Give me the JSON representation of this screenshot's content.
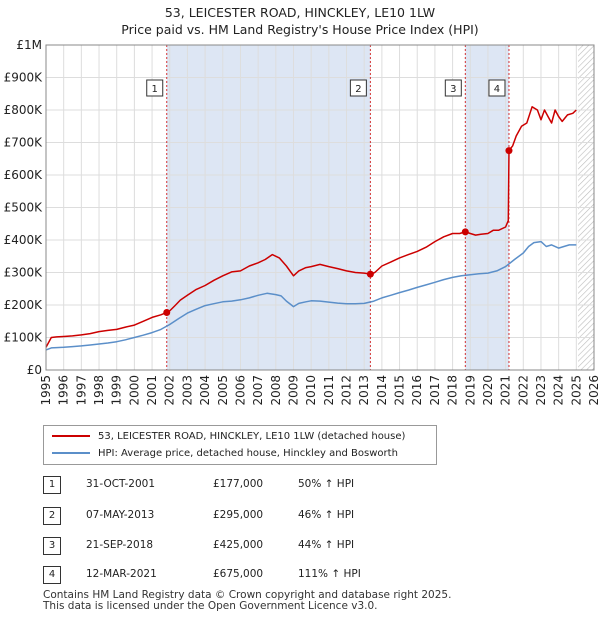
{
  "title": {
    "line1": "53, LEICESTER ROAD, HINCKLEY, LE10 1LW",
    "line2": "Price paid vs. HM Land Registry's House Price Index (HPI)"
  },
  "colors": {
    "property": "#cc0000",
    "hpi": "#5b8fc9",
    "shade": "#dde6f4",
    "grid": "#dddddd"
  },
  "legend": {
    "property": "53, LEICESTER ROAD, HINCKLEY, LE10 1LW (detached house)",
    "hpi": "HPI: Average price, detached house, Hinckley and Bosworth"
  },
  "sales": [
    {
      "num": "1",
      "date": "31-OCT-2001",
      "price": "£177,000",
      "hpi": "50% ↑ HPI"
    },
    {
      "num": "2",
      "date": "07-MAY-2013",
      "price": "£295,000",
      "hpi": "46% ↑ HPI"
    },
    {
      "num": "3",
      "date": "21-SEP-2018",
      "price": "£425,000",
      "hpi": "44% ↑ HPI"
    },
    {
      "num": "4",
      "date": "12-MAR-2021",
      "price": "£675,000",
      "hpi": "111% ↑ HPI"
    }
  ],
  "footer": {
    "line1": "Contains HM Land Registry data © Crown copyright and database right 2025.",
    "line2": "This data is licensed under the Open Government Licence v3.0."
  },
  "chart_data": {
    "type": "line",
    "title": "53, LEICESTER ROAD, HINCKLEY, LE10 1LW — Price paid vs. HM Land Registry's House Price Index (HPI)",
    "xlim": [
      1995,
      2026
    ],
    "ylim": [
      0,
      1000000
    ],
    "x_ticks": [
      1995,
      1996,
      1997,
      1998,
      1999,
      2000,
      2001,
      2002,
      2003,
      2004,
      2005,
      2006,
      2007,
      2008,
      2009,
      2010,
      2011,
      2012,
      2013,
      2014,
      2015,
      2016,
      2017,
      2018,
      2019,
      2020,
      2021,
      2022,
      2023,
      2024,
      2025,
      2026
    ],
    "y_ticks": [
      {
        "value": 0,
        "label": "£0"
      },
      {
        "value": 100000,
        "label": "£100K"
      },
      {
        "value": 200000,
        "label": "£200K"
      },
      {
        "value": 300000,
        "label": "£300K"
      },
      {
        "value": 400000,
        "label": "£400K"
      },
      {
        "value": 500000,
        "label": "£500K"
      },
      {
        "value": 600000,
        "label": "£600K"
      },
      {
        "value": 700000,
        "label": "£700K"
      },
      {
        "value": 800000,
        "label": "£800K"
      },
      {
        "value": 900000,
        "label": "£900K"
      },
      {
        "value": 1000000,
        "label": "£1M"
      }
    ],
    "grid": true,
    "shaded_periods": [
      [
        2001.83,
        2013.35
      ],
      [
        2018.72,
        2021.19
      ]
    ],
    "future_hatch_from": 2025.1,
    "sale_markers": [
      {
        "label": "1",
        "x": 2001.83,
        "y": 177000
      },
      {
        "label": "2",
        "x": 2013.35,
        "y": 295000
      },
      {
        "label": "3",
        "x": 2018.72,
        "y": 425000
      },
      {
        "label": "4",
        "x": 2021.19,
        "y": 675000
      }
    ],
    "series": [
      {
        "name": "53, LEICESTER ROAD, HINCKLEY, LE10 1LW (detached house)",
        "x": [
          1995,
          1995.3,
          1995.6,
          1996,
          1996.5,
          1997,
          1997.5,
          1998,
          1998.5,
          1999,
          1999.5,
          2000,
          2000.5,
          2001,
          2001.5,
          2001.83,
          2002,
          2002.3,
          2002.6,
          2003,
          2003.5,
          2004,
          2004.5,
          2005,
          2005.5,
          2006,
          2006.5,
          2007,
          2007.4,
          2007.8,
          2008.2,
          2008.6,
          2009,
          2009.3,
          2009.7,
          2010,
          2010.5,
          2011,
          2011.5,
          2012,
          2012.5,
          2013,
          2013.35,
          2013.6,
          2014,
          2014.5,
          2015,
          2015.5,
          2016,
          2016.5,
          2017,
          2017.5,
          2018,
          2018.4,
          2018.72,
          2019,
          2019.3,
          2019.6,
          2020,
          2020.3,
          2020.6,
          2021,
          2021.15,
          2021.19,
          2021.4,
          2021.6,
          2021.9,
          2022.2,
          2022.5,
          2022.8,
          2023,
          2023.2,
          2023.4,
          2023.6,
          2023.8,
          2024,
          2024.2,
          2024.5,
          2024.8,
          2025
        ],
        "values": [
          70000,
          100000,
          102000,
          103000,
          105000,
          108000,
          112000,
          118000,
          122000,
          125000,
          132000,
          138000,
          150000,
          162000,
          170000,
          177000,
          182000,
          198000,
          215000,
          230000,
          248000,
          260000,
          276000,
          290000,
          302000,
          305000,
          320000,
          330000,
          340000,
          355000,
          345000,
          320000,
          290000,
          305000,
          315000,
          318000,
          325000,
          318000,
          312000,
          305000,
          300000,
          298000,
          295000,
          300000,
          320000,
          332000,
          345000,
          355000,
          365000,
          378000,
          395000,
          410000,
          420000,
          420000,
          425000,
          420000,
          415000,
          418000,
          420000,
          430000,
          430000,
          440000,
          460000,
          675000,
          690000,
          720000,
          750000,
          760000,
          810000,
          800000,
          770000,
          800000,
          780000,
          760000,
          800000,
          780000,
          765000,
          785000,
          790000,
          800000
        ]
      },
      {
        "name": "HPI: Average price, detached house, Hinckley and Bosworth",
        "x": [
          1995,
          1995.3,
          1995.6,
          1996,
          1996.5,
          1997,
          1997.5,
          1998,
          1998.5,
          1999,
          1999.5,
          2000,
          2000.5,
          2001,
          2001.5,
          2002,
          2002.5,
          2003,
          2003.5,
          2004,
          2004.5,
          2005,
          2005.5,
          2006,
          2006.5,
          2007,
          2007.5,
          2008,
          2008.3,
          2008.6,
          2009,
          2009.3,
          2009.7,
          2010,
          2010.5,
          2011,
          2011.5,
          2012,
          2012.5,
          2013,
          2013.5,
          2014,
          2014.5,
          2015,
          2015.5,
          2016,
          2016.5,
          2017,
          2017.5,
          2018,
          2018.5,
          2019,
          2019.5,
          2020,
          2020.5,
          2021,
          2021.5,
          2022,
          2022.3,
          2022.6,
          2023,
          2023.3,
          2023.6,
          2024,
          2024.3,
          2024.6,
          2025
        ],
        "values": [
          62000,
          68000,
          69000,
          70000,
          72000,
          74000,
          77000,
          80000,
          83000,
          87000,
          93000,
          100000,
          107000,
          115000,
          125000,
          140000,
          158000,
          175000,
          187000,
          198000,
          204000,
          210000,
          212000,
          216000,
          222000,
          230000,
          236000,
          232000,
          228000,
          212000,
          195000,
          205000,
          210000,
          213000,
          212000,
          209000,
          206000,
          204000,
          204000,
          205000,
          211000,
          222000,
          230000,
          238000,
          246000,
          254000,
          262000,
          270000,
          278000,
          285000,
          290000,
          293000,
          296000,
          298000,
          305000,
          318000,
          340000,
          360000,
          380000,
          392000,
          395000,
          380000,
          385000,
          375000,
          380000,
          385000,
          385000
        ]
      }
    ]
  }
}
